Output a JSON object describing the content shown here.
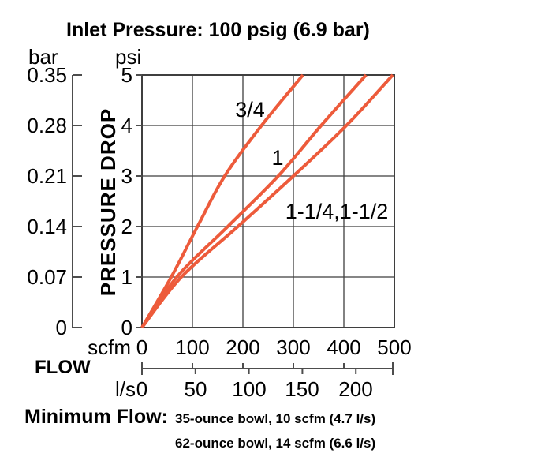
{
  "title": "Inlet Pressure: 100 psig (6.9 bar)",
  "chart_data": {
    "type": "line",
    "title": "Inlet Pressure: 100 psig (6.9 bar)",
    "x_axis": {
      "label": "FLOW",
      "units": [
        "scfm",
        "l/s"
      ],
      "scfm_ticks": [
        0,
        100,
        200,
        300,
        400,
        500
      ],
      "ls_ticks": [
        0,
        50,
        100,
        150,
        200
      ],
      "scfm_range": [
        0,
        500
      ]
    },
    "y_axis": {
      "label": "PRESSURE DROP",
      "units": [
        "bar",
        "psi"
      ],
      "psi_ticks": [
        0,
        1,
        2,
        3,
        4,
        5
      ],
      "bar_ticks": [
        0,
        0.07,
        0.14,
        0.21,
        0.28,
        0.35
      ],
      "psi_range": [
        0,
        5
      ]
    },
    "grid": true,
    "legend_position": "inline-curve-labels",
    "series": [
      {
        "name": "3/4",
        "points_scfm_psi": [
          [
            0,
            0
          ],
          [
            58,
            1
          ],
          [
            110,
            2
          ],
          [
            164,
            3
          ],
          [
            237,
            4
          ],
          [
            319,
            5
          ]
        ]
      },
      {
        "name": "1",
        "points_scfm_psi": [
          [
            0,
            0
          ],
          [
            69,
            1
          ],
          [
            170,
            2
          ],
          [
            270,
            3
          ],
          [
            355,
            4
          ],
          [
            444,
            5
          ]
        ]
      },
      {
        "name": "1-1/4,1-1/2",
        "points_scfm_psi": [
          [
            0,
            0
          ],
          [
            78,
            1
          ],
          [
            190,
            2
          ],
          [
            300,
            3
          ],
          [
            405,
            4
          ],
          [
            497,
            5
          ]
        ]
      }
    ],
    "curve_color": "#ed5b3b",
    "grid_color": "#3f3f3f",
    "axis_color": "#4d4d4d"
  },
  "labels": {
    "bar_unit": "bar",
    "psi_unit": "psi",
    "scfm_unit": "scfm",
    "ls_unit": "l/s",
    "flow": "FLOW",
    "pressure_drop": "PRESSURE DROP",
    "bar_ticks": [
      "0.35",
      "0.28",
      "0.21",
      "0.14",
      "0.07",
      "0"
    ],
    "psi_ticks": [
      "5",
      "4",
      "3",
      "2",
      "1",
      "0"
    ],
    "scfm_ticks": [
      "0",
      "100",
      "200",
      "300",
      "400",
      "500"
    ],
    "ls_ticks": [
      "0",
      "50",
      "100",
      "150",
      "200"
    ],
    "curve_labels": [
      "3/4",
      "1",
      "1-1/4,1-1/2"
    ]
  },
  "footer": {
    "min_flow_label": "Minimum Flow:",
    "min_flow_lines": [
      "35-ounce bowl, 10 scfm (4.7 l/s)",
      "62-ounce bowl, 14 scfm (6.6 l/s)"
    ]
  }
}
